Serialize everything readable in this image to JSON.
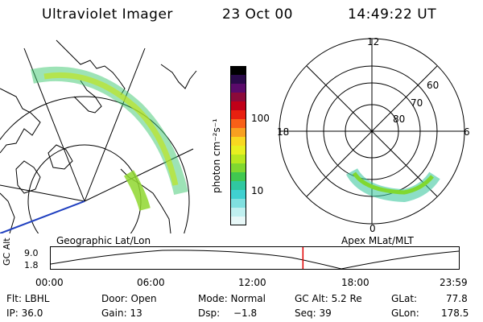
{
  "header": {
    "title": "Ultraviolet Imager",
    "date": "23 Oct 00",
    "time": "14:49:22 UT"
  },
  "colorbar": {
    "unit_label": "photon cm⁻²s⁻¹",
    "ticks": [
      "100",
      "10"
    ],
    "colors": [
      "#000000",
      "#2a0a4a",
      "#5a0a6a",
      "#8c0a3a",
      "#c00018",
      "#e82010",
      "#f86018",
      "#f8a020",
      "#f8d820",
      "#e8f020",
      "#b8e820",
      "#80d830",
      "#40c850",
      "#30c8a0",
      "#40d0d0",
      "#80e0e0",
      "#c0f0f0",
      "#e8f8f8"
    ]
  },
  "left_map": {
    "caption": "Geographic Lat/Lon"
  },
  "right_polar": {
    "caption": "Apex MLat/MLT",
    "lat_labels": [
      "80",
      "70",
      "60"
    ],
    "mlt_labels": {
      "top": "12",
      "bottom": "0",
      "left": "18",
      "right": "6"
    }
  },
  "altitude_plot": {
    "ylabel": "GC Alt",
    "yticks": [
      "9.0",
      "1.8"
    ],
    "xticks": [
      "00:00",
      "06:00",
      "12:00",
      "18:00",
      "23:59"
    ],
    "current_time_fraction": 0.618,
    "marker_color": "#e00000"
  },
  "status": {
    "flt": "Flt: LBHL",
    "ip": "IP: 36.0",
    "door": "Door: Open",
    "gain": "Gain: 13",
    "mode": "Mode: Normal",
    "dsp": "Dsp:",
    "dsp_value": "−1.8",
    "gc_alt": "GC Alt: 5.2 Re",
    "seq": "Seq: 39",
    "glat": "GLat:",
    "glat_value": "77.8",
    "glon": "GLon:",
    "glon_value": "178.5"
  }
}
